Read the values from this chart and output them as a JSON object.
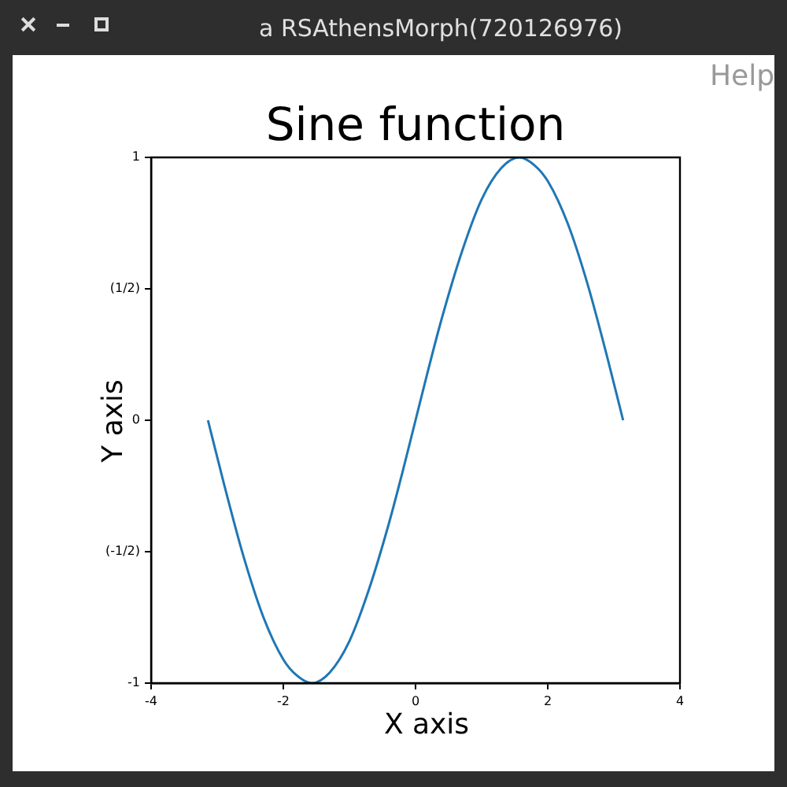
{
  "chart_data": {
    "type": "line",
    "title": "Sine function",
    "xlabel": "X axis",
    "ylabel": "Y axis",
    "annotations": [
      "a RSAthensMorph(720126976)",
      "Help"
    ],
    "x": [
      -3.14,
      -2.9,
      -2.6,
      -2.3,
      -2.0,
      -1.8,
      -1.57,
      -1.3,
      -1.0,
      -0.7,
      -0.4,
      -0.2,
      0,
      0.2,
      0.4,
      0.7,
      1.0,
      1.3,
      1.57,
      1.8,
      2.0,
      2.3,
      2.6,
      2.9,
      3.14
    ],
    "series": [
      {
        "color": "#1f77b4",
        "values": [
          0,
          -0.24,
          -0.52,
          -0.75,
          -0.91,
          -0.97,
          -1,
          -0.96,
          -0.84,
          -0.64,
          -0.39,
          -0.2,
          0,
          0.2,
          0.39,
          0.64,
          0.84,
          0.96,
          1,
          0.97,
          0.91,
          0.75,
          0.52,
          0.24,
          0
        ]
      }
    ],
    "xlim": [
      -4,
      4
    ],
    "xticks": [
      -4,
      -2,
      0,
      2,
      4
    ],
    "ylim": [
      -1,
      1
    ],
    "yticks": [
      -1,
      {
        "value": -0.5,
        "label": "(-1/2)"
      },
      0,
      {
        "value": 0.5,
        "label": "(1/2)"
      },
      1
    ],
    "marker": "none",
    "line_style": "solid"
  }
}
